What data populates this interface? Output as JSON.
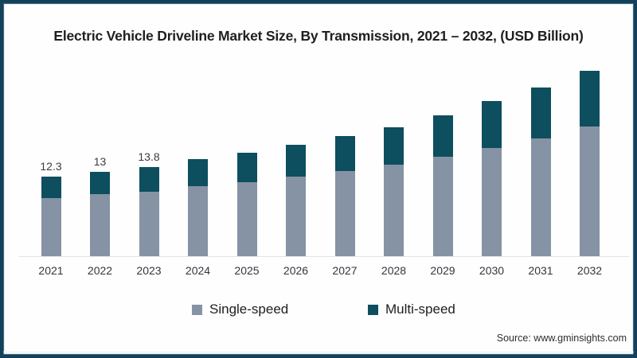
{
  "title": "Electric Vehicle Driveline Market Size, By Transmission, 2021 – 2032, (USD Billion)",
  "source_note": "Source: www.gminsights.com",
  "colors": {
    "single_speed": "#8593a4",
    "multi_speed": "#0d4e5f",
    "frame_border": "#16405a",
    "baseline": "#e3e3e3"
  },
  "legend": {
    "items": [
      {
        "label": "Single-speed",
        "color": "#8593a4"
      },
      {
        "label": "Multi-speed",
        "color": "#0d4e5f"
      }
    ]
  },
  "chart_data": {
    "type": "bar",
    "stacked": true,
    "title": "Electric Vehicle Driveline Market Size, By Transmission, 2021 – 2032, (USD Billion)",
    "unit": "USD Billion",
    "categories": [
      "2021",
      "2022",
      "2023",
      "2024",
      "2025",
      "2026",
      "2027",
      "2028",
      "2029",
      "2030",
      "2031",
      "2032"
    ],
    "series": [
      {
        "name": "Single-speed",
        "color": "#8593a4",
        "values": [
          9.0,
          9.6,
          10.0,
          10.8,
          11.4,
          12.3,
          13.2,
          14.2,
          15.4,
          16.7,
          18.2,
          20.0
        ]
      },
      {
        "name": "Multi-speed",
        "color": "#0d4e5f",
        "values": [
          3.3,
          3.4,
          3.8,
          4.2,
          4.6,
          4.9,
          5.4,
          5.8,
          6.4,
          7.2,
          7.9,
          8.6
        ]
      }
    ],
    "totals": [
      12.3,
      13.0,
      13.8,
      15.0,
      16.0,
      17.2,
      18.6,
      20.0,
      21.8,
      23.9,
      26.1,
      28.6
    ],
    "value_labels": [
      "12.3",
      "13",
      "13.8",
      null,
      null,
      null,
      null,
      null,
      null,
      null,
      null,
      null
    ],
    "y_axis": {
      "visible": false,
      "implied_range": [
        0,
        30
      ]
    },
    "x_axis": {
      "visible": true
    },
    "gridlines": false,
    "legend_position": "bottom"
  }
}
